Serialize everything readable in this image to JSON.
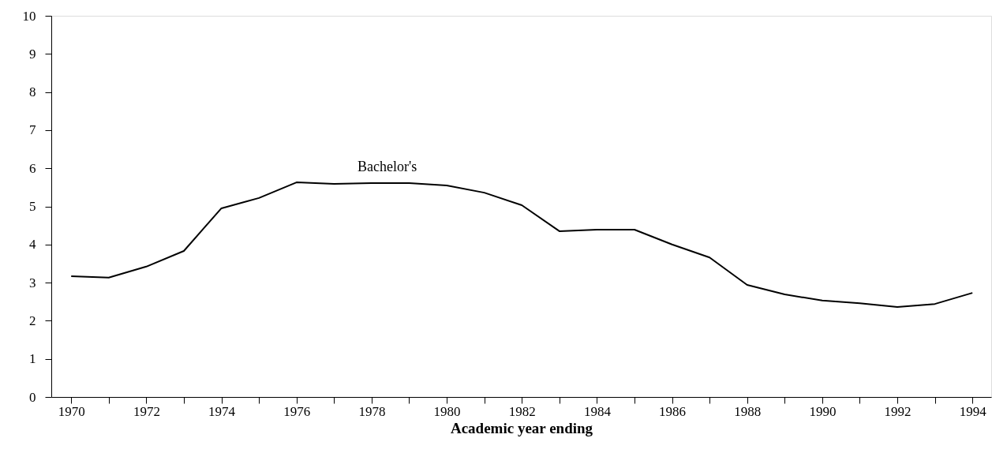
{
  "chart_data": {
    "type": "line",
    "xlabel": "Academic year ending",
    "x": [
      1970,
      1971,
      1972,
      1973,
      1974,
      1975,
      1976,
      1977,
      1978,
      1979,
      1980,
      1981,
      1982,
      1983,
      1984,
      1985,
      1986,
      1987,
      1988,
      1989,
      1990,
      1991,
      1992,
      1993,
      1994
    ],
    "series": [
      {
        "name": "Bachelor's",
        "color": "#000000",
        "values": [
          3.17,
          3.13,
          3.42,
          3.83,
          4.95,
          5.22,
          5.63,
          5.59,
          5.61,
          5.61,
          5.55,
          5.36,
          5.03,
          4.35,
          4.39,
          4.39,
          4.0,
          3.66,
          2.94,
          2.69,
          2.53,
          2.46,
          2.36,
          2.44,
          2.73
        ]
      }
    ],
    "xlim": [
      1969.47,
      1994.5
    ],
    "xticks": [
      1970,
      {
        "value": 1971,
        "label": null
      },
      1972,
      {
        "value": 1973,
        "label": null
      },
      1974,
      {
        "value": 1975,
        "label": null
      },
      1976,
      {
        "value": 1977,
        "label": null
      },
      1978,
      {
        "value": 1979,
        "label": null
      },
      1980,
      {
        "value": 1981,
        "label": null
      },
      1982,
      {
        "value": 1983,
        "label": null
      },
      1984,
      {
        "value": 1985,
        "label": null
      },
      1986,
      {
        "value": 1987,
        "label": null
      },
      1988,
      {
        "value": 1989,
        "label": null
      },
      1990,
      {
        "value": 1991,
        "label": null
      },
      1992,
      {
        "value": 1993,
        "label": null
      },
      1994
    ],
    "ylim": [
      0,
      10
    ],
    "yticks": [
      0,
      1,
      2,
      3,
      4,
      5,
      6,
      7,
      8,
      9,
      10
    ],
    "grid": false,
    "marker": "none",
    "line_style": "solid"
  }
}
